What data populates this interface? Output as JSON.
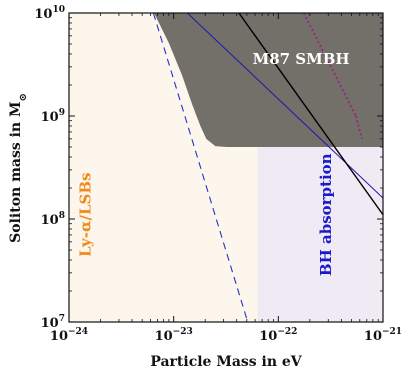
{
  "chart_data": {
    "type": "area",
    "xlabel": "Particle Mass in eV",
    "ylabel": "Soliton mass in M",
    "ylabel_subscript": "⊙",
    "x_scale": "log",
    "y_scale": "log",
    "xlim": [
      1e-24,
      1e-21
    ],
    "ylim": [
      10000000.0,
      10000000000.0
    ],
    "x_ticks": [
      {
        "value": 1e-24,
        "base": "10",
        "exp": "−24"
      },
      {
        "value": 1e-23,
        "base": "10",
        "exp": "−23"
      },
      {
        "value": 1e-22,
        "base": "10",
        "exp": "−22"
      },
      {
        "value": 1e-21,
        "base": "10",
        "exp": "−21"
      }
    ],
    "y_ticks": [
      {
        "value": 10000000.0,
        "base": "10",
        "exp": "7"
      },
      {
        "value": 100000000.0,
        "base": "10",
        "exp": "8"
      },
      {
        "value": 1000000000.0,
        "base": "10",
        "exp": "9"
      },
      {
        "value": 10000000000.0,
        "base": "10",
        "exp": "10"
      }
    ],
    "regions": [
      {
        "label": "Ly-α/LSBs",
        "color": "#fdf6ec",
        "x_range": [
          1e-24,
          6.3e-23
        ],
        "y_range": [
          10000000.0,
          10000000000.0
        ]
      },
      {
        "label": "BH absorption",
        "color": "#efeaf3",
        "x_range": [
          6.3e-23,
          1e-21
        ],
        "y_range": [
          10000000.0,
          10000000000.0
        ]
      },
      {
        "label": "M87 SMBH",
        "color": "#6e6a64",
        "boundary": [
          [
            6.5e-24,
            10000000000.0
          ],
          [
            9e-24,
            5100000000.0
          ],
          [
            1.2e-23,
            2500000000.0
          ],
          [
            1.5e-23,
            1300000000.0
          ],
          [
            1.8e-23,
            800000000.0
          ],
          [
            2.05e-23,
            600000000.0
          ],
          [
            2.5e-23,
            510000000.0
          ],
          [
            3.2e-23,
            500000000.0
          ],
          [
            1e-21,
            500000000.0
          ]
        ]
      }
    ],
    "series": [
      {
        "style": "dashed",
        "color": "#2233cc",
        "points": [
          [
            6.4e-24,
            10000000000.0
          ],
          [
            5.1e-23,
            10000000.0
          ]
        ]
      },
      {
        "style": "solid",
        "color": "#1a1aaa",
        "points": [
          [
            1.35e-23,
            10000000000.0
          ],
          [
            1e-21,
            160000000.0
          ]
        ]
      },
      {
        "style": "solid",
        "color": "#000000",
        "points": [
          [
            4.2e-23,
            10000000000.0
          ],
          [
            1e-21,
            110000000.0
          ]
        ]
      },
      {
        "style": "dotted",
        "color": "#9a1a8a",
        "points": [
          [
            1.75e-22,
            10000000000.0
          ],
          [
            5.5e-22,
            1000000000.0
          ]
        ]
      },
      {
        "style": "dotted",
        "color": "#9a1a8a",
        "points": [
          [
            5.5e-22,
            1000000000.0
          ],
          [
            6.3e-22,
            600000000.0
          ]
        ]
      }
    ],
    "annotations": [
      {
        "text": "M87 SMBH",
        "color": "#ffffff",
        "x": 1.65e-22,
        "y": 3200000000.0
      },
      {
        "text": "Ly-α/LSBs",
        "color": "#f08a1c",
        "x": 1.6e-24,
        "y": 110000000.0,
        "rotate": -90
      },
      {
        "text": "BH absorption",
        "color": "#1a1acc",
        "x": 3.2e-22,
        "y": 110000000.0,
        "rotate": -90
      }
    ]
  }
}
